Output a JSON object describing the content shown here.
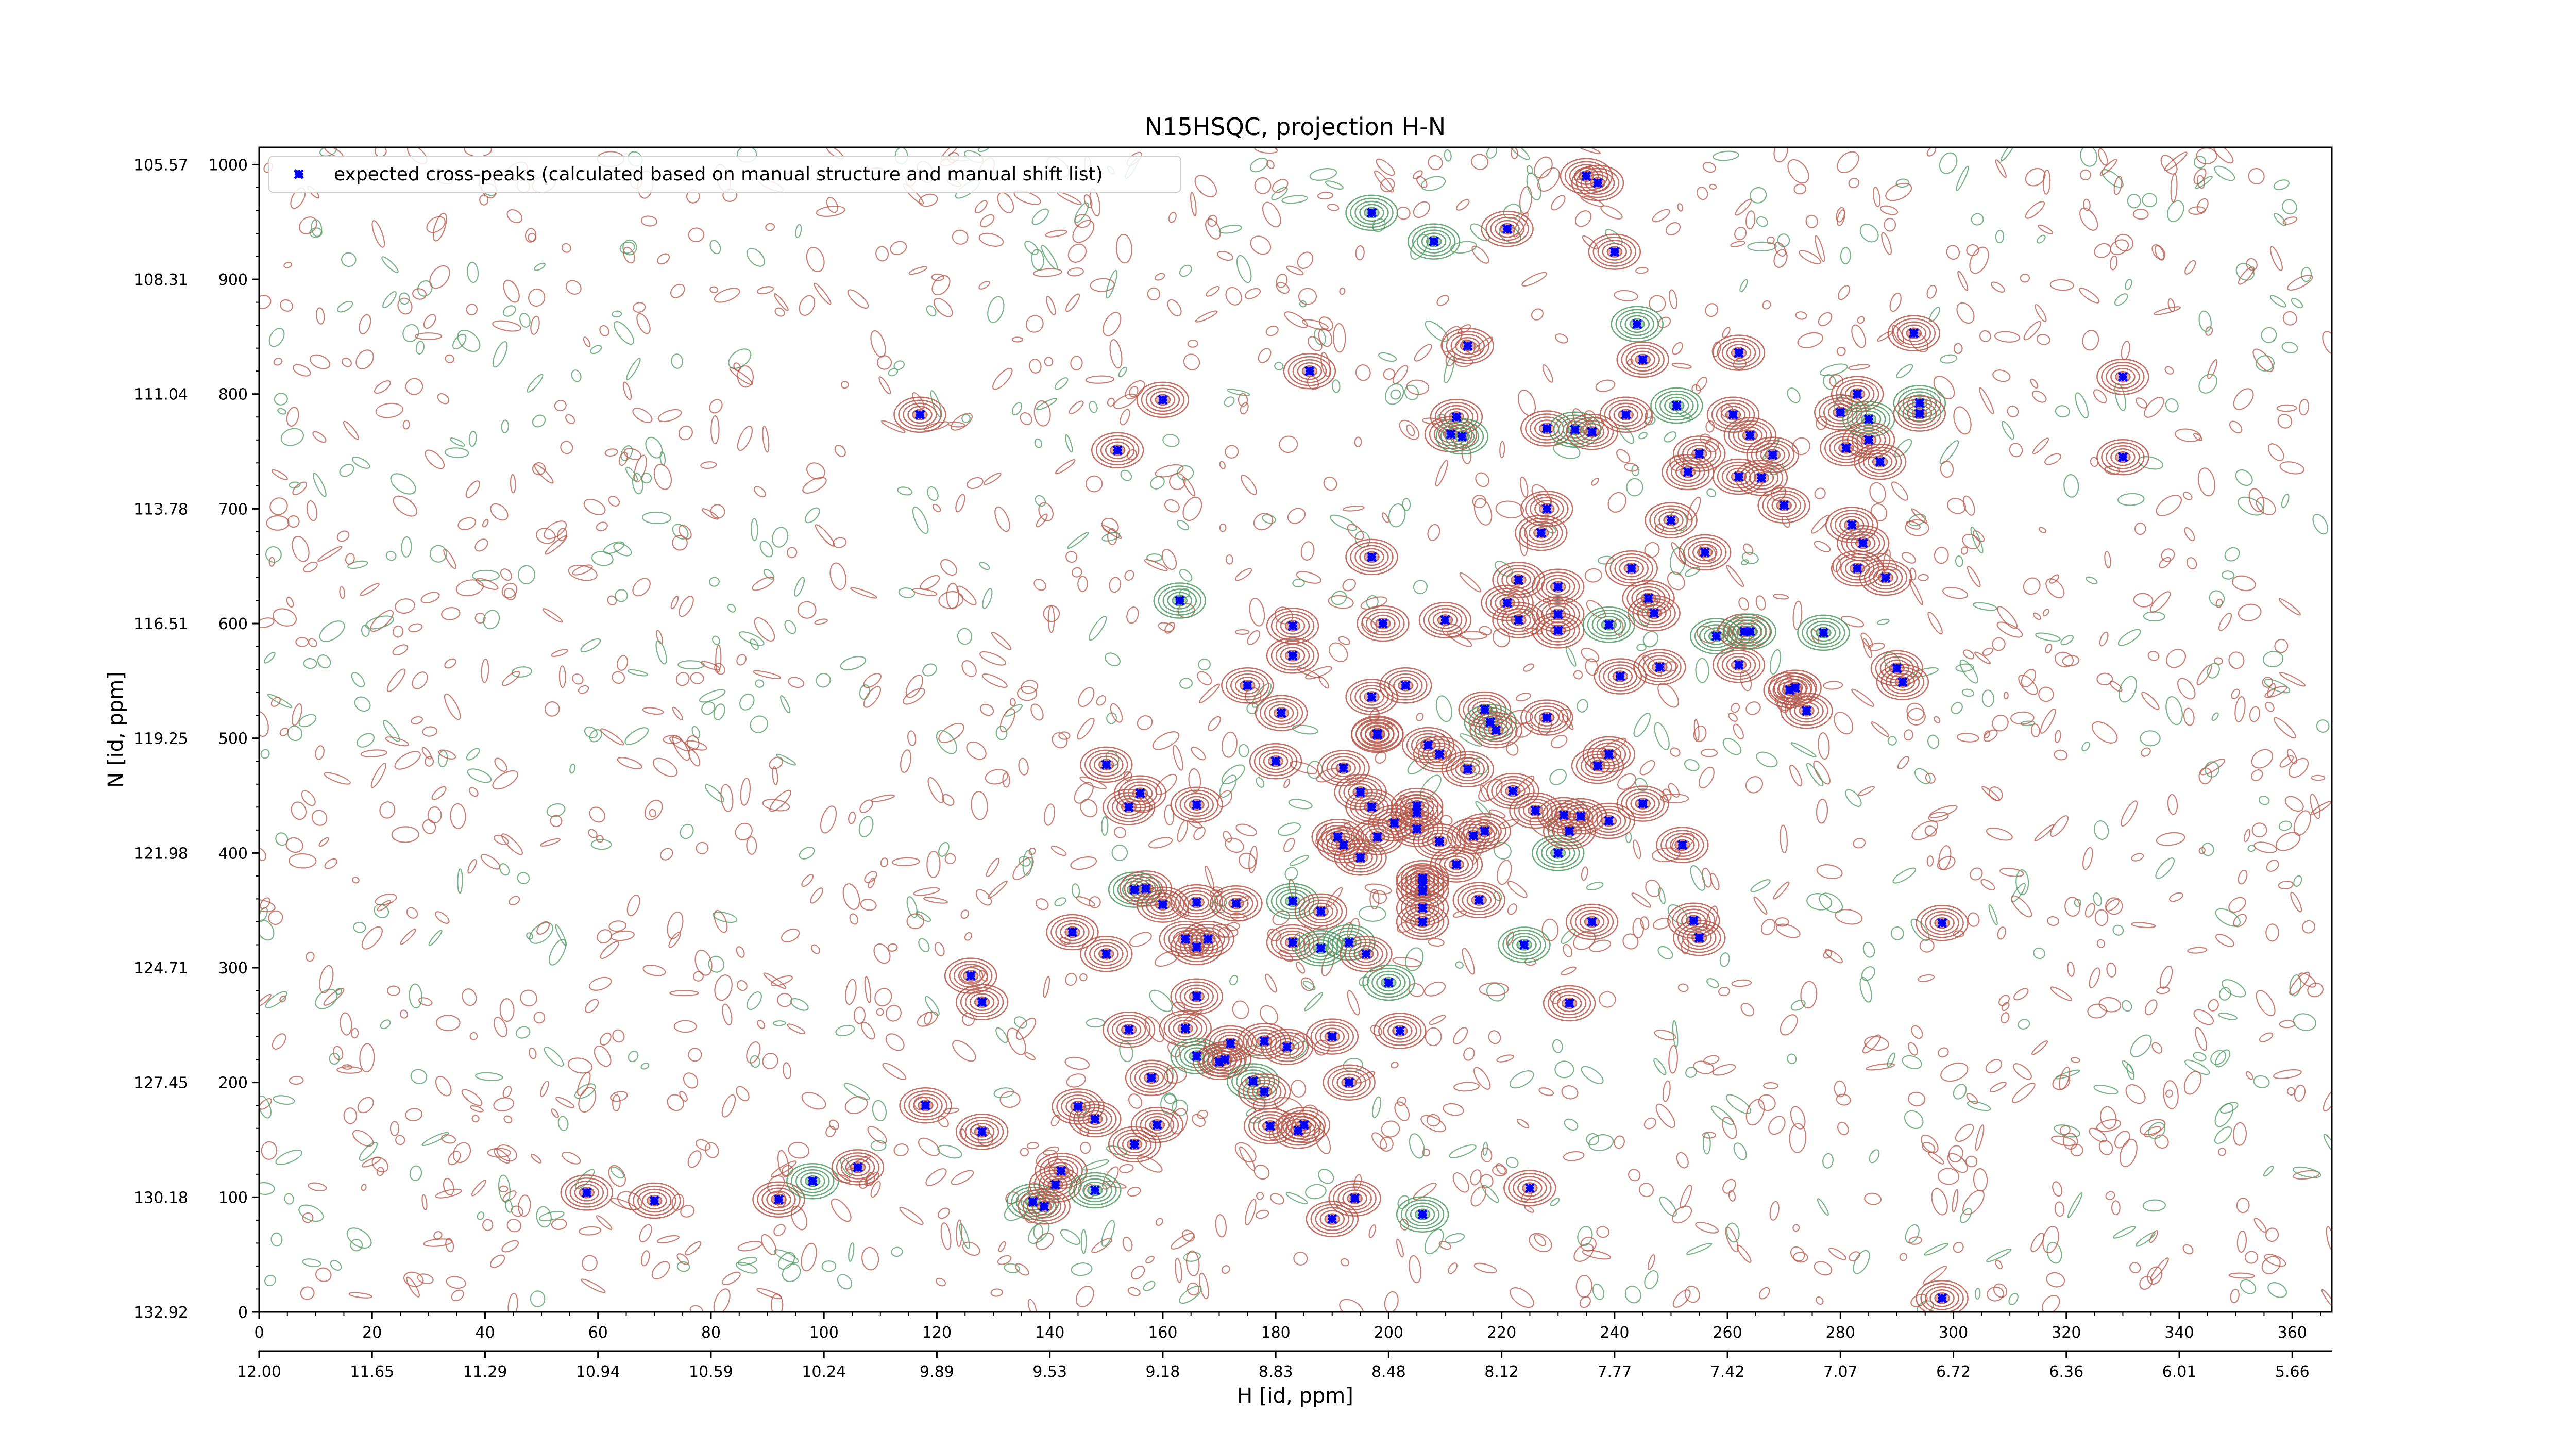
{
  "chart_data": {
    "type": "scatter",
    "title": "N15HSQC, projection H-N",
    "xlabel": "H [id, ppm]",
    "ylabel": "N [id, ppm]",
    "xlim": [
      0,
      367
    ],
    "ylim": [
      0,
      1015
    ],
    "grid": false,
    "legend_position": "top-left",
    "colors": {
      "positive_contours": "#b5574a",
      "negative_contours": "#4f9a63",
      "peaks": "#0000ff"
    },
    "x_ticks": [
      "0",
      "20",
      "40",
      "60",
      "80",
      "100",
      "120",
      "140",
      "160",
      "180",
      "200",
      "220",
      "240",
      "260",
      "280",
      "300",
      "320",
      "340",
      "360"
    ],
    "x_tick_values": [
      0,
      20,
      40,
      60,
      80,
      100,
      120,
      140,
      160,
      180,
      200,
      220,
      240,
      260,
      280,
      300,
      320,
      340,
      360
    ],
    "x_ppm_ticks": [
      "12.00",
      "11.65",
      "11.29",
      "10.94",
      "10.59",
      "10.24",
      "9.89",
      "9.53",
      "9.18",
      "8.83",
      "8.48",
      "8.12",
      "7.77",
      "7.42",
      "7.07",
      "6.72",
      "6.36",
      "6.01",
      "5.66"
    ],
    "y_ticks": [
      "0",
      "100",
      "200",
      "300",
      "400",
      "500",
      "600",
      "700",
      "800",
      "900",
      "1000"
    ],
    "y_tick_values": [
      0,
      100,
      200,
      300,
      400,
      500,
      600,
      700,
      800,
      900,
      1000
    ],
    "y_ppm_ticks": [
      "132.92",
      "130.18",
      "127.45",
      "124.71",
      "121.98",
      "119.25",
      "116.51",
      "113.78",
      "111.04",
      "108.31",
      "105.57"
    ],
    "series": [
      {
        "name": "expected cross-peaks (calculated based on manual structure and manual shift list)",
        "points": [
          [
            58,
            104
          ],
          [
            70,
            97
          ],
          [
            92,
            98
          ],
          [
            98,
            114
          ],
          [
            106,
            126
          ],
          [
            117,
            782
          ],
          [
            118,
            180
          ],
          [
            126,
            293
          ],
          [
            128,
            270
          ],
          [
            128,
            157
          ],
          [
            137,
            96
          ],
          [
            139,
            92
          ],
          [
            141,
            111
          ],
          [
            142,
            123
          ],
          [
            144,
            331
          ],
          [
            145,
            179
          ],
          [
            148,
            168
          ],
          [
            148,
            106
          ],
          [
            150,
            477
          ],
          [
            150,
            312
          ],
          [
            152,
            751
          ],
          [
            154,
            440
          ],
          [
            154,
            246
          ],
          [
            155,
            146
          ],
          [
            155,
            368
          ],
          [
            156,
            452
          ],
          [
            157,
            369
          ],
          [
            158,
            204
          ],
          [
            159,
            163
          ],
          [
            160,
            795
          ],
          [
            160,
            355
          ],
          [
            163,
            620
          ],
          [
            164,
            325
          ],
          [
            164,
            247
          ],
          [
            166,
            442
          ],
          [
            166,
            357
          ],
          [
            166,
            275
          ],
          [
            166,
            318
          ],
          [
            166,
            223
          ],
          [
            168,
            325
          ],
          [
            170,
            218
          ],
          [
            171,
            220
          ],
          [
            172,
            234
          ],
          [
            173,
            356
          ],
          [
            175,
            546
          ],
          [
            176,
            201
          ],
          [
            178,
            236
          ],
          [
            178,
            192
          ],
          [
            179,
            162
          ],
          [
            180,
            480
          ],
          [
            181,
            522
          ],
          [
            182,
            231
          ],
          [
            183,
            358
          ],
          [
            183,
            322
          ],
          [
            183,
            598
          ],
          [
            183,
            572
          ],
          [
            184,
            158
          ],
          [
            185,
            163
          ],
          [
            186,
            820
          ],
          [
            188,
            317
          ],
          [
            188,
            349
          ],
          [
            190,
            240
          ],
          [
            190,
            81
          ],
          [
            191,
            414
          ],
          [
            192,
            474
          ],
          [
            192,
            407
          ],
          [
            193,
            322
          ],
          [
            193,
            200
          ],
          [
            194,
            99
          ],
          [
            195,
            396
          ],
          [
            195,
            453
          ],
          [
            196,
            312
          ],
          [
            197,
            440
          ],
          [
            197,
            958
          ],
          [
            197,
            536
          ],
          [
            197,
            658
          ],
          [
            198,
            503
          ],
          [
            198,
            414
          ],
          [
            198,
            504
          ],
          [
            199,
            600
          ],
          [
            200,
            287
          ],
          [
            201,
            426
          ],
          [
            202,
            245
          ],
          [
            203,
            546
          ],
          [
            205,
            441
          ],
          [
            205,
            435
          ],
          [
            205,
            421
          ],
          [
            206,
            85
          ],
          [
            206,
            378
          ],
          [
            206,
            367
          ],
          [
            206,
            340
          ],
          [
            206,
            352
          ],
          [
            206,
            374
          ],
          [
            207,
            494
          ],
          [
            208,
            933
          ],
          [
            209,
            410
          ],
          [
            209,
            486
          ],
          [
            210,
            603
          ],
          [
            211,
            765
          ],
          [
            212,
            780
          ],
          [
            212,
            390
          ],
          [
            213,
            763
          ],
          [
            214,
            842
          ],
          [
            214,
            473
          ],
          [
            215,
            415
          ],
          [
            216,
            359
          ],
          [
            217,
            525
          ],
          [
            217,
            419
          ],
          [
            218,
            514
          ],
          [
            219,
            507
          ],
          [
            221,
            618
          ],
          [
            221,
            944
          ],
          [
            222,
            454
          ],
          [
            223,
            603
          ],
          [
            223,
            638
          ],
          [
            224,
            320
          ],
          [
            225,
            108
          ],
          [
            226,
            437
          ],
          [
            227,
            679
          ],
          [
            228,
            770
          ],
          [
            228,
            700
          ],
          [
            228,
            518
          ],
          [
            230,
            400
          ],
          [
            230,
            594
          ],
          [
            230,
            632
          ],
          [
            230,
            608
          ],
          [
            231,
            433
          ],
          [
            232,
            419
          ],
          [
            232,
            269
          ],
          [
            233,
            769
          ],
          [
            234,
            432
          ],
          [
            235,
            990
          ],
          [
            236,
            767
          ],
          [
            236,
            340
          ],
          [
            237,
            984
          ],
          [
            237,
            476
          ],
          [
            239,
            599
          ],
          [
            239,
            486
          ],
          [
            239,
            428
          ],
          [
            240,
            924
          ],
          [
            241,
            554
          ],
          [
            242,
            782
          ],
          [
            243,
            648
          ],
          [
            244,
            861
          ],
          [
            245,
            830
          ],
          [
            245,
            443
          ],
          [
            246,
            622
          ],
          [
            247,
            609
          ],
          [
            248,
            562
          ],
          [
            250,
            690
          ],
          [
            251,
            790
          ],
          [
            252,
            407
          ],
          [
            253,
            732
          ],
          [
            254,
            341
          ],
          [
            255,
            748
          ],
          [
            255,
            326
          ],
          [
            256,
            662
          ],
          [
            258,
            589
          ],
          [
            261,
            782
          ],
          [
            262,
            836
          ],
          [
            262,
            564
          ],
          [
            262,
            728
          ],
          [
            263,
            593
          ],
          [
            264,
            764
          ],
          [
            264,
            593
          ],
          [
            266,
            727
          ],
          [
            268,
            747
          ],
          [
            270,
            703
          ],
          [
            271,
            542
          ],
          [
            272,
            544
          ],
          [
            274,
            524
          ],
          [
            277,
            592
          ],
          [
            280,
            784
          ],
          [
            281,
            753
          ],
          [
            282,
            686
          ],
          [
            283,
            800
          ],
          [
            283,
            648
          ],
          [
            284,
            670
          ],
          [
            285,
            778
          ],
          [
            285,
            760
          ],
          [
            287,
            741
          ],
          [
            288,
            640
          ],
          [
            290,
            561
          ],
          [
            291,
            549
          ],
          [
            293,
            853
          ],
          [
            294,
            792
          ],
          [
            294,
            783
          ],
          [
            298,
            339
          ],
          [
            298,
            12
          ],
          [
            330,
            745
          ],
          [
            330,
            815
          ]
        ]
      }
    ],
    "notes": "Background is a dense field of red (positive) and green (negative) contour lines; blue x-markers are the expected peak positions."
  }
}
